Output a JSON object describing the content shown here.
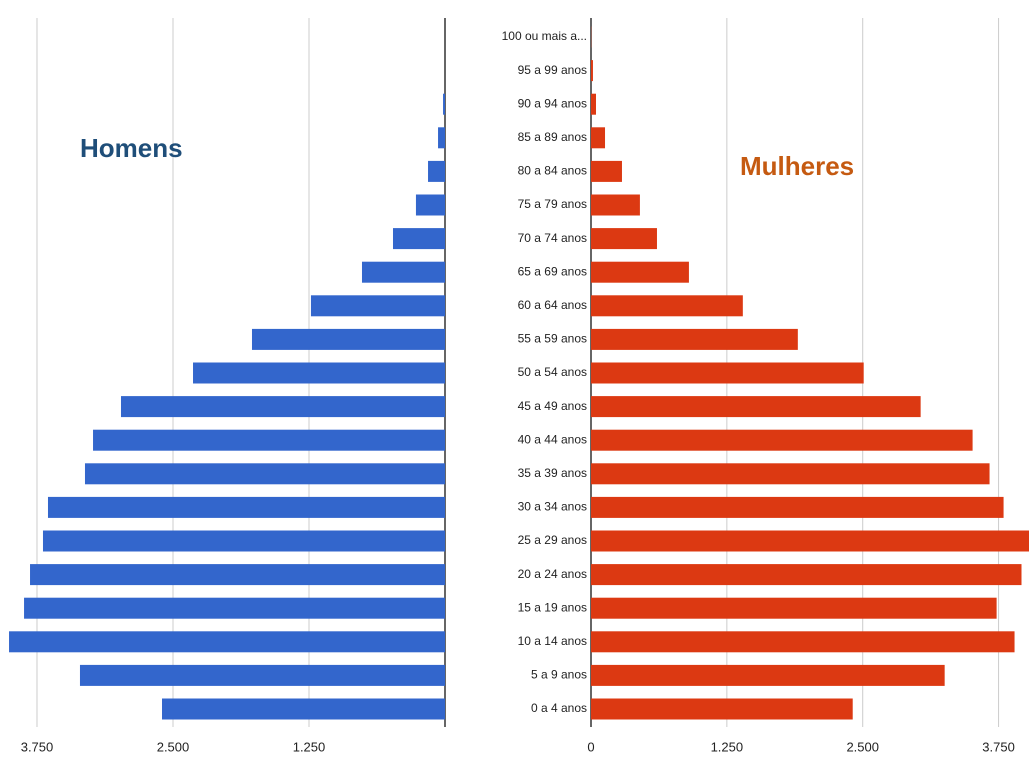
{
  "chart_data": {
    "type": "bar",
    "orientation": "horizontal",
    "categories": [
      "100 ou mais a...",
      "95 a 99 anos",
      "90 a 94 anos",
      "85 a 89 anos",
      "80 a 84 anos",
      "75 a 79 anos",
      "70 a 74 anos",
      "65 a 69 anos",
      "60 a 64 anos",
      "55 a 59 anos",
      "50 a 54 anos",
      "45 a 49 anos",
      "40 a 44 anos",
      "35 a 39 anos",
      "30 a 34 anos",
      "25 a 29 anos",
      "20 a 24 anos",
      "15 a 19 anos",
      "10 a 14 anos",
      "5 a 9 anos",
      "0 a 4 anos"
    ],
    "grid": true,
    "series": [
      {
        "name": "Homens",
        "color": "#3366cc",
        "label_color": "#1f4e79",
        "direction": "left",
        "values": [
          0,
          0,
          18,
          64,
          156,
          267,
          478,
          763,
          1232,
          1774,
          2316,
          2978,
          3235,
          3309,
          3649,
          3695,
          3814,
          3869,
          4007,
          3355,
          2601
        ],
        "xlim": [
          0,
          4090
        ],
        "xticks": [
          {
            "value": 3750,
            "label": "3.750"
          },
          {
            "value": 2500,
            "label": "2.500"
          },
          {
            "value": 1250,
            "label": "1.250"
          }
        ]
      },
      {
        "name": "Mulheres",
        "color": "#dc3912",
        "label_color": "#c55a11",
        "direction": "right",
        "values": [
          2,
          18,
          46,
          129,
          285,
          450,
          607,
          901,
          1397,
          1903,
          2509,
          3033,
          3511,
          3667,
          3796,
          4030,
          3961,
          3732,
          3897,
          3254,
          2408
        ],
        "xlim": [
          0,
          4030
        ],
        "xticks": [
          0,
          {
            "value": 1250,
            "label": "1.250"
          },
          {
            "value": 2500,
            "label": "2.500"
          },
          {
            "value": 3750,
            "label": "3.750"
          }
        ]
      }
    ]
  }
}
